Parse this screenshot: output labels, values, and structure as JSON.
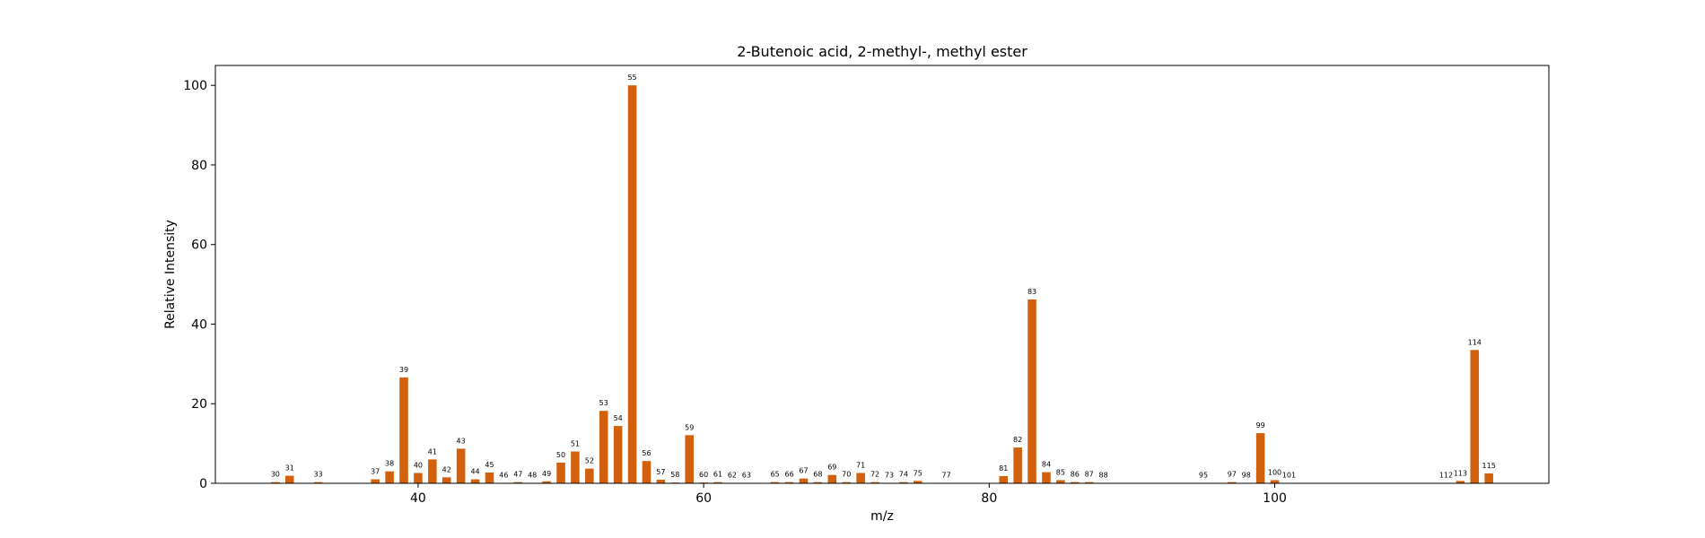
{
  "chart_data": {
    "type": "bar",
    "title": "2-Butenoic acid, 2-methyl-, methyl ester",
    "xlabel": "m/z",
    "ylabel": "Relative Intensity",
    "xlim": [
      25.8,
      119.2
    ],
    "ylim": [
      0,
      105
    ],
    "xticks": [
      40,
      60,
      80,
      100
    ],
    "yticks": [
      0,
      20,
      40,
      60,
      80,
      100
    ],
    "bar_color": "#d2600c",
    "grid": false,
    "x": [
      30,
      31,
      33,
      37,
      38,
      39,
      40,
      41,
      42,
      43,
      44,
      45,
      46,
      47,
      48,
      49,
      50,
      51,
      52,
      53,
      54,
      55,
      56,
      57,
      58,
      59,
      60,
      61,
      62,
      63,
      65,
      66,
      67,
      68,
      69,
      70,
      71,
      72,
      73,
      74,
      75,
      77,
      81,
      82,
      83,
      84,
      85,
      86,
      87,
      88,
      95,
      97,
      98,
      99,
      100,
      101,
      112,
      113,
      114,
      115
    ],
    "values": [
      0.3,
      1.9,
      0.3,
      1.0,
      3.0,
      26.6,
      2.6,
      6.0,
      1.5,
      8.7,
      1.0,
      2.7,
      0.1,
      0.3,
      0.1,
      0.5,
      5.2,
      8.0,
      3.7,
      18.2,
      14.4,
      100,
      5.6,
      0.9,
      0.2,
      12.1,
      0.2,
      0.3,
      0.1,
      0.1,
      0.3,
      0.3,
      1.2,
      0.3,
      2.1,
      0.3,
      2.6,
      0.3,
      0.1,
      0.3,
      0.6,
      0.1,
      1.8,
      9.0,
      46.2,
      2.8,
      0.8,
      0.3,
      0.3,
      0.1,
      0.1,
      0.3,
      0.1,
      12.6,
      0.8,
      0.1,
      0.1,
      0.6,
      33.5,
      2.5
    ]
  }
}
